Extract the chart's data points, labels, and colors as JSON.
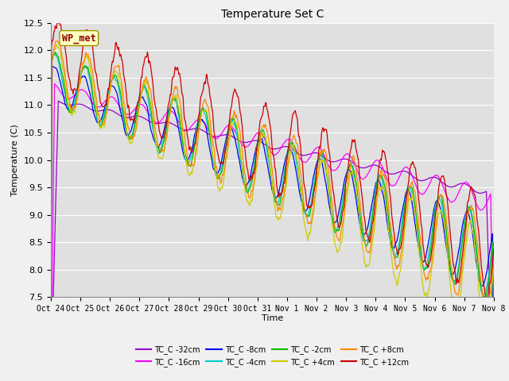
{
  "title": "Temperature Set C",
  "xlabel": "Time",
  "ylabel": "Temperature (C)",
  "ylim": [
    7.5,
    12.5
  ],
  "annotation": "WP_met",
  "annotation_color": "#8B0000",
  "annotation_bg": "#FFFFC0",
  "series": [
    {
      "label": "TC_C -32cm",
      "color": "#9900CC"
    },
    {
      "label": "TC_C -16cm",
      "color": "#FF00FF"
    },
    {
      "label": "TC_C -8cm",
      "color": "#0000EE"
    },
    {
      "label": "TC_C -4cm",
      "color": "#00CCCC"
    },
    {
      "label": "TC_C -2cm",
      "color": "#00BB00"
    },
    {
      "label": "TC_C +4cm",
      "color": "#CCCC00"
    },
    {
      "label": "TC_C +8cm",
      "color": "#FF8800"
    },
    {
      "label": "TC_C +12cm",
      "color": "#CC0000"
    }
  ],
  "xtick_labels": [
    "Oct 24",
    "Oct 25",
    "Oct 26",
    "Oct 27",
    "Oct 28",
    "Oct 29",
    "Oct 30",
    "Oct 31",
    "Nov 1",
    "Nov 2",
    "Nov 3",
    "Nov 4",
    "Nov 5",
    "Nov 6",
    "Nov 7",
    "Nov 8"
  ],
  "bg_color": "#E0E0E0",
  "grid_color": "#FFFFFF",
  "fig_bg": "#F0F0F0"
}
